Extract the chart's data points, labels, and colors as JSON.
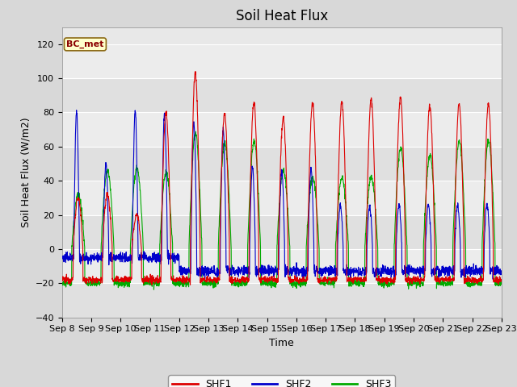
{
  "title": "Soil Heat Flux",
  "ylabel": "Soil Heat Flux (W/m2)",
  "xlabel": "Time",
  "annotation": "BC_met",
  "ylim": [
    -40,
    130
  ],
  "yticks": [
    -40,
    -20,
    0,
    20,
    40,
    60,
    80,
    100,
    120
  ],
  "legend_labels": [
    "SHF1",
    "SHF2",
    "SHF3"
  ],
  "colors": {
    "SHF1": "#dd0000",
    "SHF2": "#0000cc",
    "SHF3": "#00aa00"
  },
  "fig_bg": "#d8d8d8",
  "plot_bg": "#e8e8e8",
  "n_days": 15,
  "start_day": 8,
  "points_per_day": 144,
  "title_fontsize": 12,
  "axis_label_fontsize": 9,
  "tick_fontsize": 8,
  "legend_fontsize": 9,
  "day_peaks_shf1": [
    30,
    32,
    20,
    80,
    103,
    79,
    86,
    77,
    86,
    86,
    88,
    89,
    84,
    85,
    85
  ],
  "day_peaks_shf2": [
    80,
    50,
    81,
    80,
    75,
    70,
    48,
    46,
    47,
    26,
    25,
    26,
    26,
    26,
    26
  ],
  "day_peaks_shf3": [
    32,
    46,
    48,
    45,
    68,
    62,
    63,
    46,
    42,
    42,
    42,
    59,
    55,
    63,
    63
  ],
  "night_shf1": -18,
  "night_shf3": -20,
  "shf2_night_early": -5,
  "shf2_night_late": -13
}
